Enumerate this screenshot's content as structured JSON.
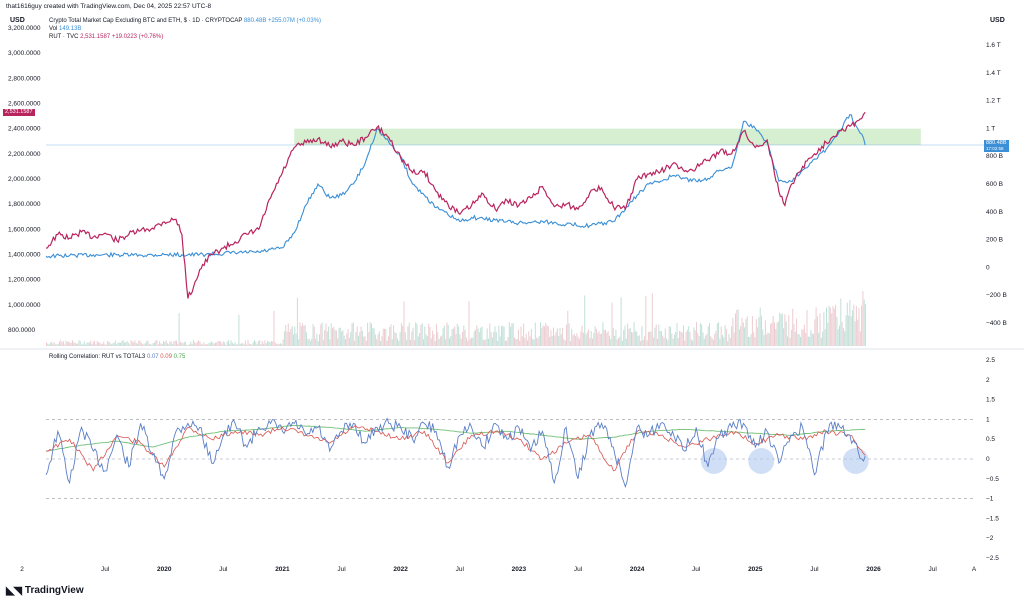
{
  "header": {
    "author_line": "that1616guy created with TradingView.com, Dec 04, 2025 22:57 UTC-8",
    "left_unit": "USD",
    "right_unit": "USD"
  },
  "legend": {
    "main_series": "Crypto Total Market Cap Excluding BTC and ETH, $ · 1D · CRYPTOCAP",
    "main_value": "880.48B",
    "main_change": "+255.07M (+0.03%)",
    "vol_label": "Vol",
    "vol_value": "149.13B",
    "rut_series": "RUT · TVC",
    "rut_value": "2,531.1587",
    "rut_change": "+19.0223 (+0.76%)",
    "correlation_title": "Rolling Correlation: RUT vs TOTAL3",
    "corr_v1": "0.07",
    "corr_v2": "0.09",
    "corr_v3": "0.75"
  },
  "tags": {
    "rut_tag": "2,531.1587",
    "total3_tag": "880.48B",
    "total3_tag_sub": "17:02:58"
  },
  "colors": {
    "rut": "#b8245e",
    "total3": "#3a8fd6",
    "corr_blue": "#5b7fc7",
    "corr_red": "#d9544f",
    "corr_green": "#6fbf73",
    "band": "#d6efd1",
    "volume": "#a7d3c8"
  },
  "chart_data": {
    "type": "line",
    "x_ticks": [
      "2",
      "Jul",
      "2020",
      "Jul",
      "2021",
      "Jul",
      "2022",
      "Jul",
      "2023",
      "Jul",
      "2024",
      "Jul",
      "2025",
      "Jul",
      "2026",
      "Jul",
      "A"
    ],
    "left_axis_ticks": [
      "3,200.0000",
      "3,000.0000",
      "2,800.0000",
      "2,600.0000",
      "2,400.0000",
      "2,200.0000",
      "2,000.0000",
      "1,800.0000",
      "1,600.0000",
      "1,400.0000",
      "1,200.0000",
      "1,000.0000",
      "800.0000"
    ],
    "right_axis_ticks": [
      "1.6 T",
      "1.4 T",
      "1.2 T",
      "1 T",
      "800 B",
      "600 B",
      "400 B",
      "200 B",
      "0",
      "−200 B",
      "−400 B"
    ],
    "corr_axis_ticks": [
      "2.5",
      "2",
      "1.5",
      "1",
      "0.5",
      "0",
      "−0.5",
      "−1",
      "−1.5",
      "−2",
      "−2.5"
    ],
    "rut": {
      "name": "RUT · TVC",
      "x": [
        2019.0,
        2019.1,
        2019.2,
        2019.3,
        2019.4,
        2019.5,
        2019.6,
        2019.7,
        2019.8,
        2019.9,
        2020.0,
        2020.1,
        2020.15,
        2020.2,
        2020.25,
        2020.3,
        2020.4,
        2020.5,
        2020.6,
        2020.7,
        2020.8,
        2020.9,
        2021.0,
        2021.1,
        2021.2,
        2021.3,
        2021.4,
        2021.5,
        2021.6,
        2021.7,
        2021.8,
        2021.9,
        2022.0,
        2022.1,
        2022.2,
        2022.3,
        2022.4,
        2022.5,
        2022.6,
        2022.7,
        2022.8,
        2022.9,
        2023.0,
        2023.1,
        2023.2,
        2023.3,
        2023.4,
        2023.5,
        2023.6,
        2023.7,
        2023.8,
        2023.9,
        2024.0,
        2024.1,
        2024.2,
        2024.3,
        2024.4,
        2024.5,
        2024.6,
        2024.7,
        2024.8,
        2024.9,
        2025.0,
        2025.1,
        2025.2,
        2025.25,
        2025.3,
        2025.4,
        2025.5,
        2025.6,
        2025.7,
        2025.8,
        2025.9,
        2025.93
      ],
      "y": [
        1450,
        1560,
        1530,
        1580,
        1540,
        1570,
        1510,
        1560,
        1590,
        1610,
        1660,
        1680,
        1560,
        1050,
        1150,
        1280,
        1400,
        1450,
        1500,
        1560,
        1600,
        1850,
        2050,
        2250,
        2290,
        2320,
        2260,
        2300,
        2270,
        2330,
        2410,
        2330,
        2170,
        2050,
        2060,
        1900,
        1800,
        1720,
        1790,
        1880,
        1760,
        1830,
        1790,
        1850,
        1940,
        1780,
        1800,
        1760,
        1890,
        1930,
        1780,
        1760,
        2000,
        2040,
        2060,
        2120,
        2060,
        2090,
        2150,
        2220,
        2200,
        2380,
        2250,
        2310,
        1900,
        1790,
        1950,
        2100,
        2200,
        2290,
        2380,
        2420,
        2480,
        2531
      ]
    },
    "total3": {
      "name": "Crypto Total Market Cap Excluding BTC and ETH",
      "x": [
        2019.0,
        2019.2,
        2019.4,
        2019.6,
        2019.8,
        2020.0,
        2020.2,
        2020.4,
        2020.6,
        2020.8,
        2021.0,
        2021.1,
        2021.2,
        2021.3,
        2021.4,
        2021.5,
        2021.6,
        2021.7,
        2021.8,
        2021.9,
        2022.0,
        2022.1,
        2022.2,
        2022.3,
        2022.4,
        2022.5,
        2022.6,
        2022.7,
        2022.8,
        2022.9,
        2023.0,
        2023.2,
        2023.4,
        2023.6,
        2023.8,
        2023.9,
        2024.0,
        2024.1,
        2024.2,
        2024.3,
        2024.4,
        2024.5,
        2024.6,
        2024.7,
        2024.8,
        2024.9,
        2025.0,
        2025.1,
        2025.2,
        2025.3,
        2025.4,
        2025.5,
        2025.6,
        2025.7,
        2025.8,
        2025.9,
        2025.93
      ],
      "y": [
        80,
        85,
        90,
        90,
        88,
        92,
        90,
        95,
        105,
        110,
        140,
        250,
        450,
        600,
        500,
        520,
        600,
        750,
        1000,
        900,
        800,
        600,
        520,
        430,
        380,
        330,
        360,
        350,
        340,
        330,
        320,
        330,
        310,
        300,
        330,
        420,
        520,
        600,
        620,
        660,
        640,
        620,
        640,
        700,
        720,
        1050,
        1000,
        900,
        620,
        620,
        700,
        780,
        850,
        960,
        1100,
        960,
        880.48
      ]
    },
    "resistance_band": {
      "rut_low": 2270,
      "rut_high": 2400,
      "x_start": 2021.1,
      "x_end": 2026.4
    },
    "volume": {
      "x_range": [
        2019.0,
        2025.93
      ],
      "note": "histogram"
    },
    "rolling_correlation": {
      "name": "Rolling Correlation: RUT vs TOTAL3",
      "guide_levels": [
        1,
        0,
        -1
      ],
      "blue": {
        "x": [
          2019.0,
          2019.1,
          2019.2,
          2019.3,
          2019.4,
          2019.5,
          2019.6,
          2019.7,
          2019.8,
          2019.9,
          2020.0,
          2020.1,
          2020.2,
          2020.3,
          2020.4,
          2020.5,
          2020.6,
          2020.7,
          2020.8,
          2020.9,
          2021.0,
          2021.1,
          2021.2,
          2021.3,
          2021.4,
          2021.5,
          2021.6,
          2021.7,
          2021.8,
          2021.9,
          2022.0,
          2022.1,
          2022.2,
          2022.3,
          2022.4,
          2022.5,
          2022.6,
          2022.7,
          2022.8,
          2022.9,
          2023.0,
          2023.1,
          2023.2,
          2023.3,
          2023.4,
          2023.5,
          2023.6,
          2023.7,
          2023.8,
          2023.9,
          2024.0,
          2024.1,
          2024.2,
          2024.3,
          2024.4,
          2024.5,
          2024.6,
          2024.7,
          2024.8,
          2024.9,
          2025.0,
          2025.1,
          2025.2,
          2025.3,
          2025.4,
          2025.5,
          2025.6,
          2025.7,
          2025.8,
          2025.9,
          2025.93
        ],
        "y": [
          -0.4,
          0.7,
          -0.6,
          0.8,
          0.2,
          -0.3,
          0.6,
          -0.2,
          0.9,
          0.1,
          -0.5,
          0.7,
          0.9,
          0.8,
          -0.1,
          0.6,
          0.9,
          0.3,
          0.8,
          0.9,
          0.7,
          0.9,
          0.6,
          0.8,
          0.2,
          0.7,
          0.9,
          0.4,
          0.8,
          0.9,
          0.8,
          0.5,
          0.9,
          0.7,
          -0.2,
          0.6,
          0.8,
          0.3,
          0.9,
          0.5,
          0.8,
          0.2,
          0.7,
          -0.6,
          0.8,
          -0.5,
          0.6,
          0.9,
          0.3,
          -0.7,
          0.8,
          0.6,
          0.9,
          0.7,
          0.2,
          0.8,
          -0.2,
          0.6,
          0.8,
          0.9,
          0.3,
          0.7,
          -0.1,
          0.6,
          0.8,
          -0.4,
          0.7,
          0.9,
          0.6,
          0.0,
          0.07
        ]
      },
      "red": {
        "x": [
          2019.0,
          2019.2,
          2019.4,
          2019.6,
          2019.8,
          2020.0,
          2020.2,
          2020.4,
          2020.6,
          2020.8,
          2021.0,
          2021.2,
          2021.4,
          2021.6,
          2021.8,
          2022.0,
          2022.2,
          2022.4,
          2022.6,
          2022.8,
          2023.0,
          2023.2,
          2023.4,
          2023.6,
          2023.8,
          2024.0,
          2024.2,
          2024.4,
          2024.6,
          2024.8,
          2025.0,
          2025.2,
          2025.4,
          2025.6,
          2025.8,
          2025.93
        ],
        "y": [
          0.2,
          0.5,
          -0.3,
          0.6,
          0.4,
          -0.2,
          0.8,
          0.5,
          0.7,
          0.6,
          0.8,
          0.6,
          0.4,
          0.8,
          0.7,
          0.5,
          0.7,
          -0.1,
          0.6,
          0.7,
          0.5,
          0.0,
          0.4,
          0.6,
          -0.3,
          0.7,
          0.6,
          0.3,
          0.5,
          0.7,
          0.4,
          0.6,
          0.5,
          0.7,
          0.6,
          0.09
        ]
      },
      "green": {
        "x": [
          2019.0,
          2019.3,
          2019.6,
          2019.9,
          2020.2,
          2020.5,
          2020.8,
          2021.1,
          2021.4,
          2021.7,
          2022.0,
          2022.3,
          2022.6,
          2022.9,
          2023.2,
          2023.5,
          2023.8,
          2024.1,
          2024.4,
          2024.7,
          2025.0,
          2025.3,
          2025.6,
          2025.93
        ],
        "y": [
          0.2,
          0.35,
          0.45,
          0.3,
          0.55,
          0.7,
          0.75,
          0.85,
          0.8,
          0.7,
          0.8,
          0.75,
          0.65,
          0.7,
          0.6,
          0.5,
          0.55,
          0.7,
          0.75,
          0.7,
          0.65,
          0.6,
          0.7,
          0.75
        ]
      },
      "highlight_circles_x": [
        2024.65,
        2025.05,
        2025.85
      ]
    }
  }
}
